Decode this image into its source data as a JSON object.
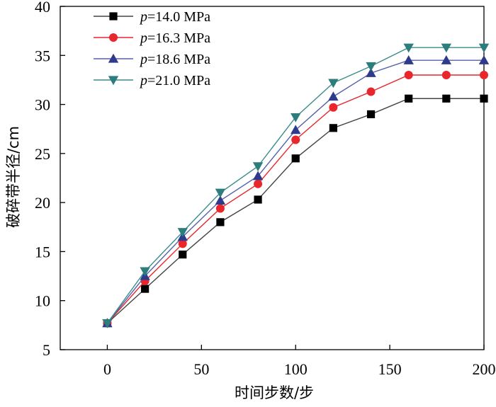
{
  "chart_data": {
    "type": "line",
    "title": "",
    "xlabel": "时间步数/步",
    "ylabel": "破碎带半径/cm",
    "xlim": [
      -25,
      200
    ],
    "ylim": [
      5,
      40
    ],
    "xticks": [
      0,
      50,
      100,
      150,
      200
    ],
    "yticks": [
      5,
      10,
      15,
      20,
      25,
      30,
      35,
      40
    ],
    "xtick_labels": [
      "0",
      "50",
      "100",
      "150",
      "200"
    ],
    "ytick_labels": [
      "5",
      "10",
      "15",
      "20",
      "25",
      "30",
      "35",
      "40"
    ],
    "legend_position": "top-left",
    "x": [
      0,
      20,
      40,
      60,
      80,
      100,
      120,
      140,
      160,
      180,
      200
    ],
    "series": [
      {
        "name": "p=14.0 MPa",
        "legend_italic": "p",
        "legend_rest": "=14.0 MPa",
        "marker": "square",
        "color": "#000000",
        "line_color": "#444444",
        "values": [
          7.7,
          11.2,
          14.7,
          18.0,
          20.3,
          24.5,
          27.6,
          29.0,
          30.6,
          30.6,
          30.6
        ]
      },
      {
        "name": "p=16.3 MPa",
        "legend_italic": "p",
        "legend_rest": "=16.3 MPa",
        "marker": "circle",
        "color": "#e8262b",
        "line_color": "#e8262b",
        "values": [
          7.7,
          12.0,
          15.8,
          19.4,
          21.9,
          26.4,
          29.7,
          31.3,
          33.0,
          33.0,
          33.0
        ]
      },
      {
        "name": "p=18.6 MPa",
        "legend_italic": "p",
        "legend_rest": "=18.6 MPa",
        "marker": "triangle-up",
        "color": "#2e3a8c",
        "line_color": "#5560a8",
        "values": [
          7.7,
          12.5,
          16.5,
          20.2,
          22.7,
          27.4,
          30.8,
          33.2,
          34.5,
          34.5,
          34.5
        ]
      },
      {
        "name": "p=21.0 MPa",
        "legend_italic": "p",
        "legend_rest": "=21.0 MPa",
        "marker": "triangle-down",
        "color": "#2e7d7d",
        "line_color": "#3b8c8c",
        "values": [
          7.7,
          13.0,
          17.0,
          21.0,
          23.7,
          28.7,
          32.2,
          33.9,
          35.8,
          35.8,
          35.8
        ]
      }
    ]
  }
}
